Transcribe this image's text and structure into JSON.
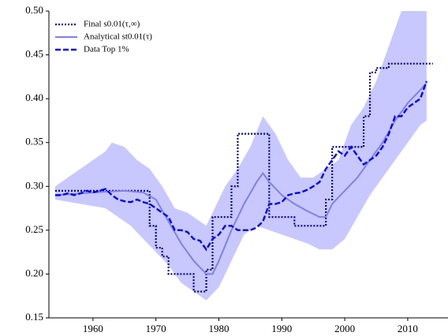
{
  "chart_data": {
    "type": "line",
    "xlim": [
      1953,
      2016.4
    ],
    "ylim": [
      0.15,
      0.5
    ],
    "xticks": [
      1960,
      1970,
      1980,
      1990,
      2000,
      2010
    ],
    "yticks": [
      0.15,
      {
        "value": 0.2,
        "label": "0.20"
      },
      0.25,
      {
        "value": 0.3,
        "label": "0.30"
      },
      0.35,
      {
        "value": 0.4,
        "label": "0.40"
      },
      0.45,
      {
        "value": 0.5,
        "label": "0.50"
      }
    ],
    "legend": "upper left",
    "band": {
      "color": "#c8c8ff",
      "upper": {
        "x": [
          1954,
          1956,
          1958,
          1960,
          1962,
          1963,
          1965,
          1967,
          1969,
          1971,
          1973,
          1975,
          1977,
          1978,
          1979,
          1981,
          1983,
          1985,
          1987,
          1989,
          1991,
          1993,
          1995,
          1997,
          1999,
          2001,
          2003,
          2005,
          2007,
          2009,
          2011,
          2013
        ],
        "values": [
          0.3,
          0.31,
          0.32,
          0.33,
          0.34,
          0.35,
          0.345,
          0.33,
          0.32,
          0.3,
          0.275,
          0.27,
          0.26,
          0.255,
          0.27,
          0.3,
          0.32,
          0.345,
          0.38,
          0.36,
          0.33,
          0.31,
          0.31,
          0.32,
          0.33,
          0.37,
          0.39,
          0.42,
          0.46,
          0.5,
          0.5,
          0.5
        ]
      },
      "lower": {
        "x": [
          1954,
          1958,
          1962,
          1966,
          1968,
          1970,
          1972,
          1974,
          1976,
          1978,
          1980,
          1982,
          1984,
          1986,
          1988,
          1990,
          1992,
          1994,
          1996,
          1998,
          2000,
          2002,
          2004,
          2006,
          2008,
          2010,
          2012,
          2013
        ],
        "values": [
          0.285,
          0.28,
          0.275,
          0.255,
          0.24,
          0.225,
          0.21,
          0.19,
          0.18,
          0.17,
          0.185,
          0.215,
          0.245,
          0.255,
          0.25,
          0.245,
          0.24,
          0.235,
          0.228,
          0.228,
          0.24,
          0.265,
          0.29,
          0.31,
          0.33,
          0.35,
          0.37,
          0.375
        ]
      }
    },
    "series": [
      {
        "name": "Final s0.01(τ,∞)",
        "color": "#00008b",
        "style": "dotted",
        "drawstyle": "steps-post",
        "x": [
          1954,
          1955,
          1956,
          1957,
          1958,
          1959,
          1960,
          1961,
          1962,
          1963,
          1964,
          1965,
          1966,
          1967,
          1968,
          1969,
          1970,
          1971,
          1972,
          1973,
          1974,
          1975,
          1976,
          1977,
          1978,
          1979,
          1980,
          1981,
          1982,
          1983,
          1984,
          1985,
          1986,
          1987,
          1988,
          1989,
          1990,
          1991,
          1992,
          1993,
          1994,
          1995,
          1996,
          1997,
          1998,
          1999,
          2000,
          2001,
          2002,
          2003,
          2004,
          2005,
          2006,
          2007,
          2008,
          2009,
          2010,
          2011,
          2012,
          2013,
          2014
        ],
        "values": [
          0.295,
          0.295,
          0.295,
          0.295,
          0.295,
          0.295,
          0.295,
          0.295,
          0.295,
          0.295,
          0.295,
          0.295,
          0.295,
          0.295,
          0.295,
          0.255,
          0.23,
          0.22,
          0.2,
          0.2,
          0.2,
          0.2,
          0.18,
          0.18,
          0.205,
          0.265,
          0.265,
          0.265,
          0.3,
          0.36,
          0.36,
          0.36,
          0.36,
          0.36,
          0.265,
          0.265,
          0.265,
          0.265,
          0.255,
          0.255,
          0.255,
          0.255,
          0.255,
          0.285,
          0.345,
          0.345,
          0.345,
          0.345,
          0.345,
          0.38,
          0.43,
          0.435,
          0.435,
          0.44,
          0.44,
          0.44,
          0.44,
          0.44,
          0.44,
          0.44,
          0.44
        ]
      },
      {
        "name": "Analytical st0.01(τ)",
        "color": "#8080e8",
        "style": "solid",
        "drawstyle": "default",
        "x": [
          1954,
          1960,
          1965,
          1968,
          1970,
          1972,
          1974,
          1976,
          1978,
          1979,
          1980,
          1982,
          1984,
          1986,
          1987,
          1988,
          1990,
          1992,
          1994,
          1996,
          1997,
          1998,
          2000,
          2002,
          2004,
          2006,
          2008,
          2010,
          2012,
          2013
        ],
        "values": [
          0.29,
          0.293,
          0.295,
          0.293,
          0.285,
          0.26,
          0.235,
          0.215,
          0.2,
          0.2,
          0.215,
          0.25,
          0.28,
          0.305,
          0.315,
          0.305,
          0.29,
          0.28,
          0.272,
          0.265,
          0.265,
          0.28,
          0.295,
          0.31,
          0.33,
          0.35,
          0.375,
          0.395,
          0.41,
          0.418
        ]
      },
      {
        "name": "Data Top 1%",
        "color": "#0000ee",
        "style": "dashed",
        "drawstyle": "default",
        "x": [
          1954,
          1955,
          1956,
          1957,
          1958,
          1959,
          1960,
          1961,
          1962,
          1963,
          1964,
          1965,
          1966,
          1967,
          1968,
          1969,
          1970,
          1971,
          1972,
          1973,
          1974,
          1975,
          1976,
          1977,
          1978,
          1979,
          1980,
          1981,
          1982,
          1983,
          1984,
          1985,
          1986,
          1987,
          1988,
          1989,
          1990,
          1991,
          1992,
          1993,
          1994,
          1995,
          1996,
          1997,
          1998,
          1999,
          2000,
          2001,
          2002,
          2003,
          2004,
          2005,
          2006,
          2007,
          2008,
          2009,
          2010,
          2011,
          2012,
          2013
        ],
        "values": [
          0.29,
          0.29,
          0.292,
          0.29,
          0.292,
          0.295,
          0.293,
          0.295,
          0.297,
          0.29,
          0.285,
          0.283,
          0.282,
          0.285,
          0.282,
          0.28,
          0.275,
          0.27,
          0.265,
          0.25,
          0.25,
          0.248,
          0.24,
          0.238,
          0.228,
          0.24,
          0.245,
          0.255,
          0.255,
          0.25,
          0.25,
          0.25,
          0.253,
          0.26,
          0.28,
          0.28,
          0.282,
          0.29,
          0.292,
          0.293,
          0.296,
          0.3,
          0.305,
          0.32,
          0.33,
          0.34,
          0.335,
          0.345,
          0.335,
          0.325,
          0.33,
          0.335,
          0.345,
          0.36,
          0.38,
          0.38,
          0.39,
          0.395,
          0.4,
          0.42
        ]
      }
    ]
  }
}
